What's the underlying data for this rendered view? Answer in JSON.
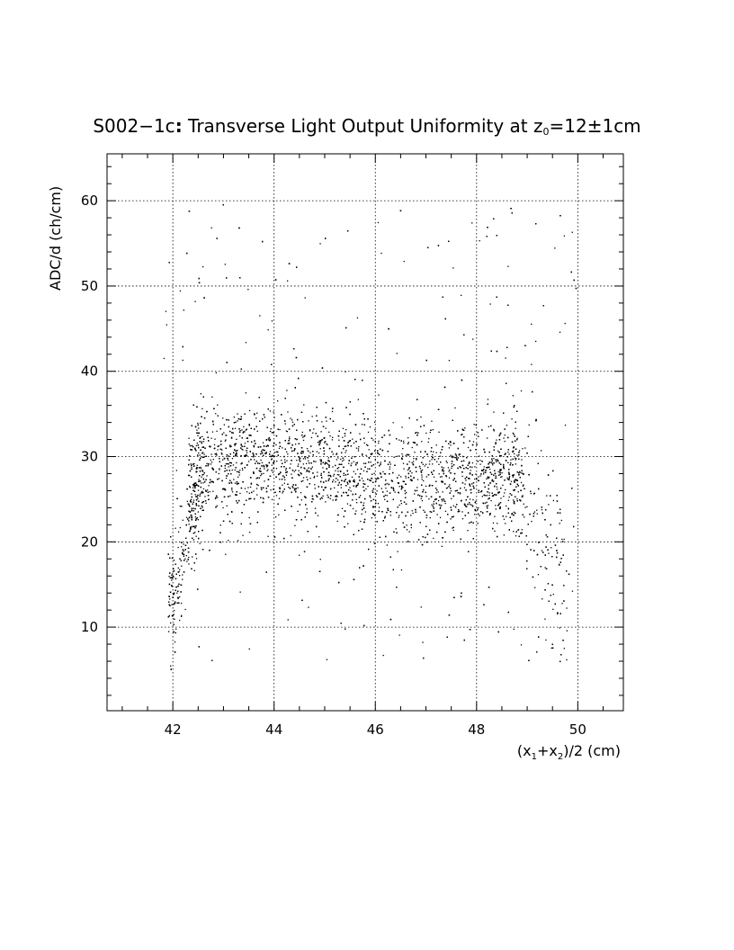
{
  "chart_data": {
    "type": "scatter",
    "title": {
      "prefix": "S002−1c",
      "colon": ":",
      "main": " Transverse Light Output Uniformity at z",
      "sub": "0",
      "suffix": "=12±1cm"
    },
    "xlabel": {
      "a": "(x",
      "sub1": "1",
      "b": "+x",
      "sub2": "2",
      "c": ")/2 (cm)"
    },
    "ylabel": "ADC/d (ch/cm)",
    "xlim": [
      40.7,
      50.9
    ],
    "ylim": [
      0.2,
      65.5
    ],
    "x_ticks": [
      42,
      44,
      46,
      48,
      50
    ],
    "x_tick_labels": [
      "42",
      "44",
      "46",
      "48",
      "50"
    ],
    "y_ticks": [
      10,
      20,
      30,
      40,
      50,
      60
    ],
    "y_tick_labels": [
      "10",
      "20",
      "30",
      "40",
      "50",
      "60"
    ],
    "grid": true,
    "grid_style": "dotted",
    "marker_color": "#000000",
    "description_of_distribution": {
      "band_center_y": 29,
      "band_x_range": [
        42.3,
        48.9
      ],
      "approx_point_count": 6000
    }
  }
}
